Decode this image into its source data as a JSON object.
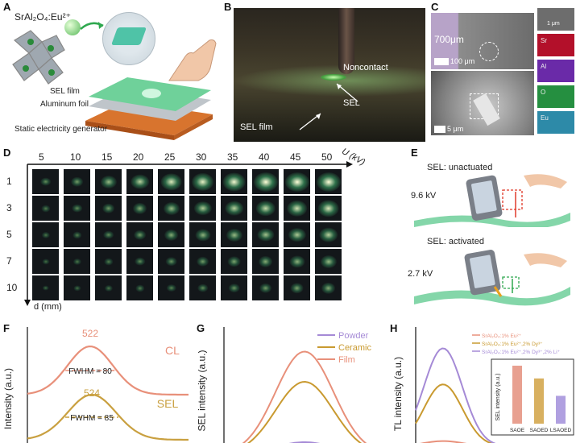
{
  "panels": {
    "A": {
      "letter": "A",
      "compound": "SrAl₂O₄:Eu²⁺",
      "layer_sel": "SEL film",
      "layer_al": "Aluminum foil",
      "generator": "Static electricity generator"
    },
    "B": {
      "letter": "B",
      "noncontact": "Noncontact",
      "sel": "SEL",
      "sel_film": "SEL film"
    },
    "C": {
      "letter": "C",
      "thickness": "700μm",
      "scale1": "100 μm",
      "scale2": "5 μm",
      "scale3": "1 μm",
      "elements": [
        "Sr",
        "Al",
        "O",
        "Eu"
      ],
      "element_colors": [
        "#c8102e",
        "#7b2fbf",
        "#2fa84f",
        "#3aa6c8"
      ]
    },
    "D": {
      "letter": "D",
      "u_label": "U (kV)",
      "d_label": "d (mm)",
      "voltages": [
        "5",
        "10",
        "15",
        "20",
        "25",
        "30",
        "35",
        "40",
        "45",
        "50"
      ],
      "distances": [
        "1",
        "3",
        "5",
        "7",
        "10"
      ],
      "brightness": [
        [
          0.25,
          0.35,
          0.55,
          0.7,
          0.85,
          0.9,
          0.95,
          1.0,
          1.0,
          1.0
        ],
        [
          0.15,
          0.25,
          0.35,
          0.45,
          0.55,
          0.65,
          0.7,
          0.75,
          0.8,
          0.85
        ],
        [
          0.1,
          0.15,
          0.25,
          0.35,
          0.45,
          0.5,
          0.55,
          0.6,
          0.65,
          0.7
        ],
        [
          0.05,
          0.1,
          0.15,
          0.25,
          0.3,
          0.35,
          0.4,
          0.45,
          0.5,
          0.55
        ],
        [
          0.03,
          0.05,
          0.1,
          0.15,
          0.2,
          0.25,
          0.3,
          0.35,
          0.4,
          0.45
        ]
      ]
    },
    "E": {
      "letter": "E",
      "unactuated": "SEL: unactuated",
      "v1": "9.6 kV",
      "activated": "SEL: activated",
      "v2": "2.7 kV"
    },
    "F": {
      "letter": "F"
    },
    "G": {
      "letter": "G"
    },
    "H": {
      "letter": "H"
    }
  },
  "chart_data": [
    {
      "type": "line",
      "panel": "F",
      "ylabel": "Intensity (a.u.)",
      "series": [
        {
          "name": "CL",
          "peak": 522,
          "fwhm": "FWHM = 80",
          "color": "#e8907a"
        },
        {
          "name": "SEL",
          "peak": 524,
          "fwhm": "FWHM = 85",
          "color": "#c9a040"
        }
      ]
    },
    {
      "type": "line",
      "panel": "G",
      "ylabel": "SEL intensity (a.u.)",
      "legend": "top-right",
      "series": [
        {
          "name": "Powder",
          "relative_peak": 0.1,
          "color": "#a58ad6"
        },
        {
          "name": "Ceramic",
          "relative_peak": 0.6,
          "color": "#c99a30"
        },
        {
          "name": "Film",
          "relative_peak": 0.85,
          "color": "#e8907a"
        }
      ]
    },
    {
      "type": "line",
      "panel": "H",
      "ylabel": "TL intensity (a.u.)",
      "legend": "top-right",
      "series": [
        {
          "name": "SrAl₂O₄:1% Eu²⁺",
          "relative_peak": 0.05,
          "color": "#e8907a"
        },
        {
          "name": "SrAl₂O₄:1% Eu²⁺,2% Dy³⁺",
          "relative_peak": 0.6,
          "color": "#c99a30"
        },
        {
          "name": "SrAl₂O₄:1% Eu²⁺,2% Dy³⁺,2% Li⁺",
          "relative_peak": 0.95,
          "color": "#a58ad6"
        }
      ],
      "inset": {
        "type": "bar",
        "ylabel": "SEL intensity (a.u.)",
        "categories": [
          "SAOE",
          "SAOED",
          "LSAOED"
        ],
        "values": [
          1.0,
          0.78,
          0.48
        ],
        "colors": [
          "#e8a090",
          "#d8b060",
          "#b0a0e0"
        ]
      }
    }
  ]
}
